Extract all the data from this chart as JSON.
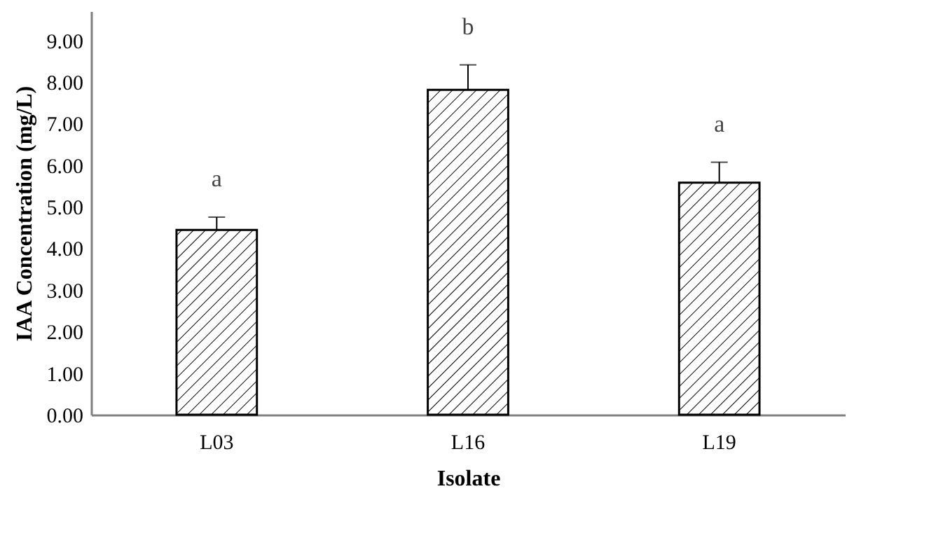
{
  "chart_data": {
    "type": "bar",
    "xlabel": "Isolate",
    "ylabel": "IAA Concentration (mg/L)",
    "categories": [
      "L03",
      "L16",
      "L19"
    ],
    "values": [
      4.44,
      7.81,
      5.58
    ],
    "errors": [
      0.31,
      0.6,
      0.49
    ],
    "color": "#000000",
    "ylim": [
      0,
      9.7
    ],
    "yticks": [
      {
        "value": 0,
        "label": "0.00"
      },
      {
        "value": 1,
        "label": "1.00"
      },
      {
        "value": 2,
        "label": "2.00"
      },
      {
        "value": 3,
        "label": "3.00"
      },
      {
        "value": 4,
        "label": "4.00"
      },
      {
        "value": 5,
        "label": "5.00"
      },
      {
        "value": 6,
        "label": "6.00"
      },
      {
        "value": 7,
        "label": "7.00"
      },
      {
        "value": 8,
        "label": "8.00"
      },
      {
        "value": 9,
        "label": "9.00"
      }
    ],
    "annotations": [
      "a",
      "b",
      "a"
    ],
    "grid": false
  }
}
